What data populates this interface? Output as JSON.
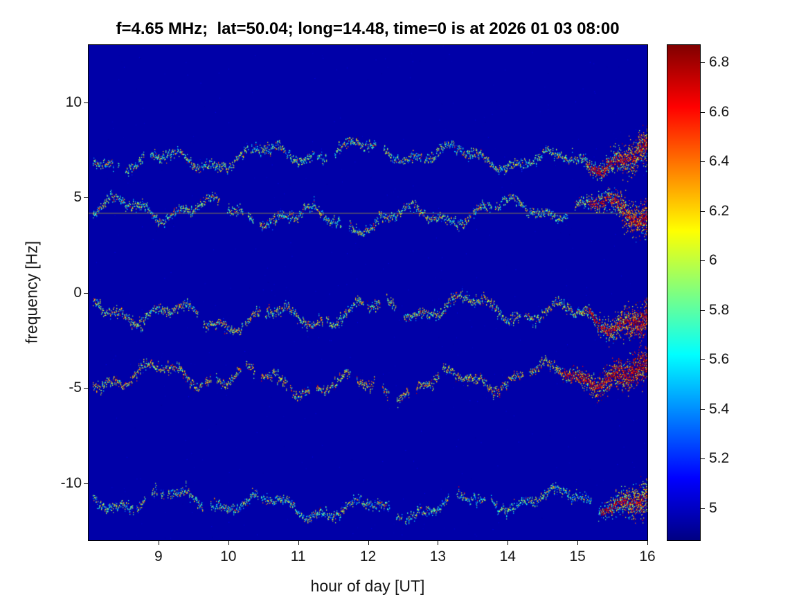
{
  "chart_data": {
    "type": "heatmap",
    "title": "f=4.65 MHz;  lat=50.04; long=14.48, time=0 is at 2026 01 03 08:00",
    "xlabel": "hour of day [UT]",
    "ylabel": "frequency [Hz]",
    "x_range": [
      8,
      16
    ],
    "y_range": [
      -13,
      13
    ],
    "x_ticks": [
      9,
      10,
      11,
      12,
      13,
      14,
      15,
      16
    ],
    "y_ticks": [
      10,
      5,
      0,
      -5,
      -10
    ],
    "grid": false,
    "colormap": "jet",
    "color_limits": [
      4.87,
      6.87
    ],
    "background_level": 4.95,
    "colorbar": {
      "position": "right",
      "ticks": [
        5,
        5.2,
        5.4,
        5.6,
        5.8,
        6,
        6.2,
        6.4,
        6.6,
        6.8
      ]
    },
    "bands": [
      {
        "name": "doppler-trace-plus7Hz",
        "center_hz": 7.2,
        "wiggle_amp_hz": 0.42,
        "mean_level": 5.8,
        "end_intensify_from_hour": 15.0,
        "baseline_line": false
      },
      {
        "name": "doppler-trace-plus4Hz",
        "center_hz": 4.15,
        "wiggle_amp_hz": 0.48,
        "mean_level": 5.8,
        "end_intensify_from_hour": 15.0,
        "baseline_line": true
      },
      {
        "name": "doppler-trace-minus1Hz",
        "center_hz": -1.05,
        "wiggle_amp_hz": 0.5,
        "mean_level": 5.9,
        "end_intensify_from_hour": 15.0,
        "baseline_line": false
      },
      {
        "name": "doppler-trace-minus4.6Hz",
        "center_hz": -4.6,
        "wiggle_amp_hz": 0.5,
        "mean_level": 6.05,
        "end_intensify_from_hour": 14.6,
        "baseline_line": false
      },
      {
        "name": "doppler-trace-minus11Hz",
        "center_hz": -11.1,
        "wiggle_amp_hz": 0.42,
        "mean_level": 5.7,
        "end_intensify_from_hour": 15.2,
        "baseline_line": false
      }
    ]
  }
}
